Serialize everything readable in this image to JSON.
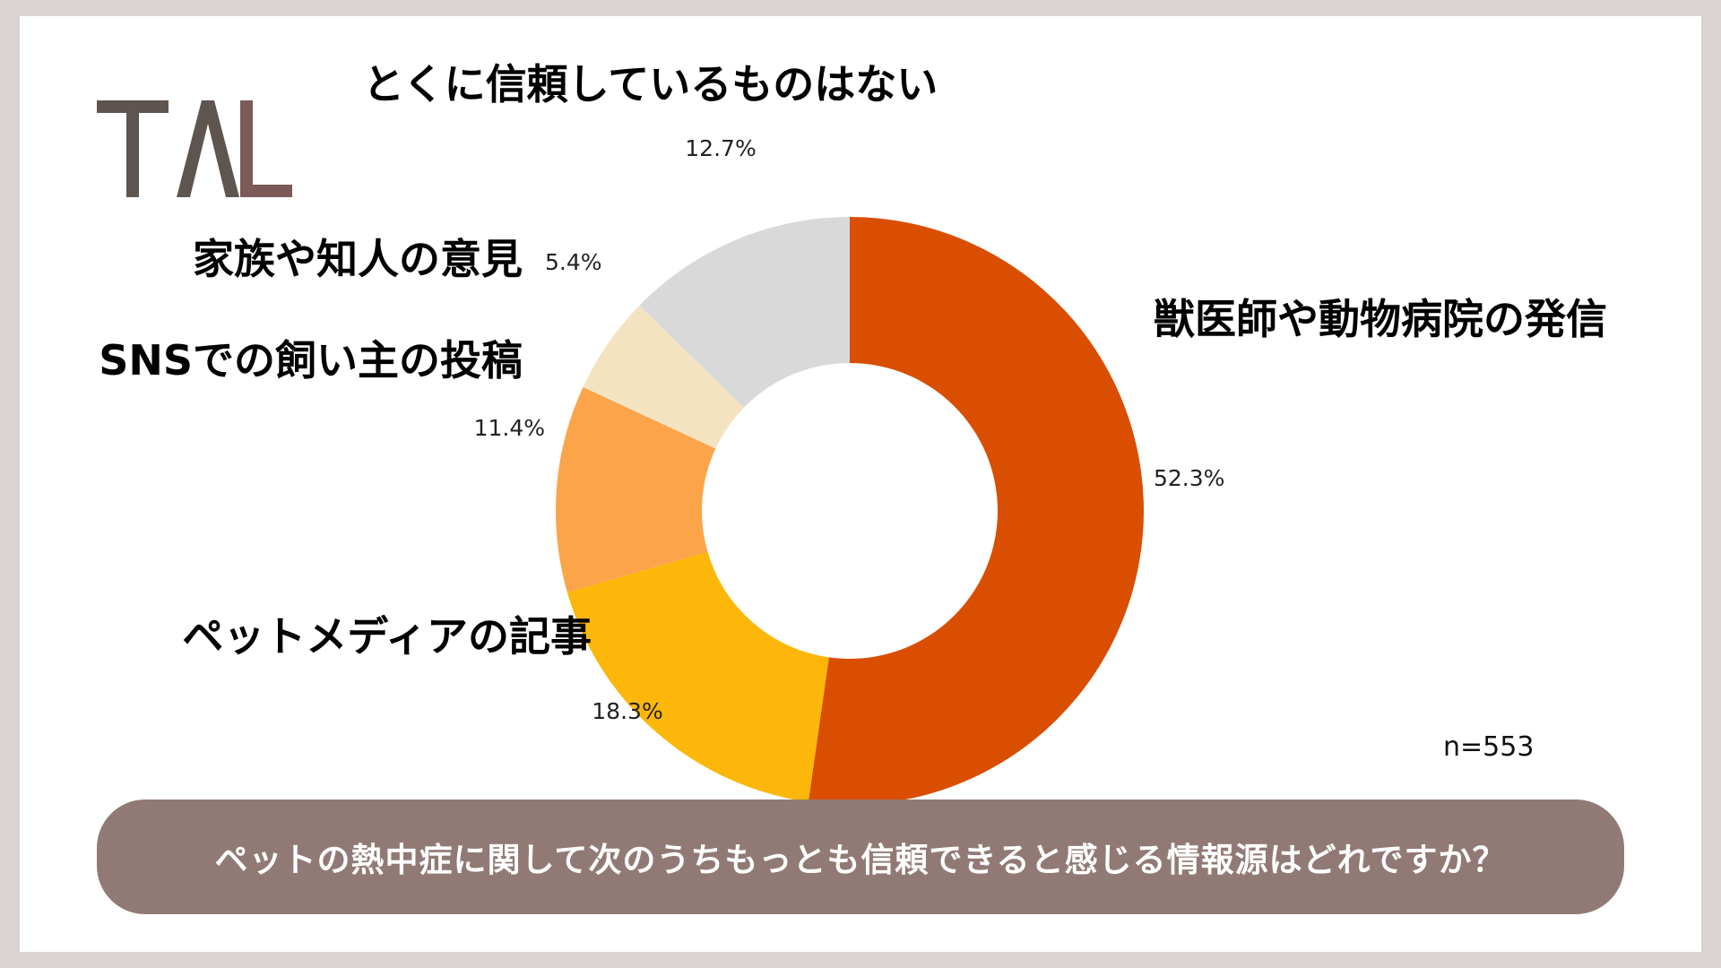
{
  "logo": {
    "text": "TAL",
    "colors": {
      "t": "#5e5550",
      "a": "#5e5550",
      "l": "#7b5a58"
    }
  },
  "chart_data": {
    "type": "pie",
    "donut": true,
    "categories": [
      "獣医師や動物病院の発信",
      "ペットメディアの記事",
      "SNSでの飼い主の投稿",
      "家族や知人の意見",
      "とくに信頼しているものはない"
    ],
    "values": [
      52.3,
      18.3,
      11.4,
      5.4,
      12.7
    ],
    "value_labels": [
      "52.3%",
      "18.3%",
      "11.4%",
      "5.4%",
      "12.7%"
    ],
    "colors": [
      "#d94e00",
      "#fcb70a",
      "#fba44a",
      "#f3e3c1",
      "#d9d9d9"
    ],
    "start": "12 o'clock",
    "direction": "clockwise",
    "legend": "none"
  },
  "sample_size": "n=553",
  "question": "ペットの熱中症に関して次のうちもっとも信頼できると感じる情報源はどれですか？"
}
